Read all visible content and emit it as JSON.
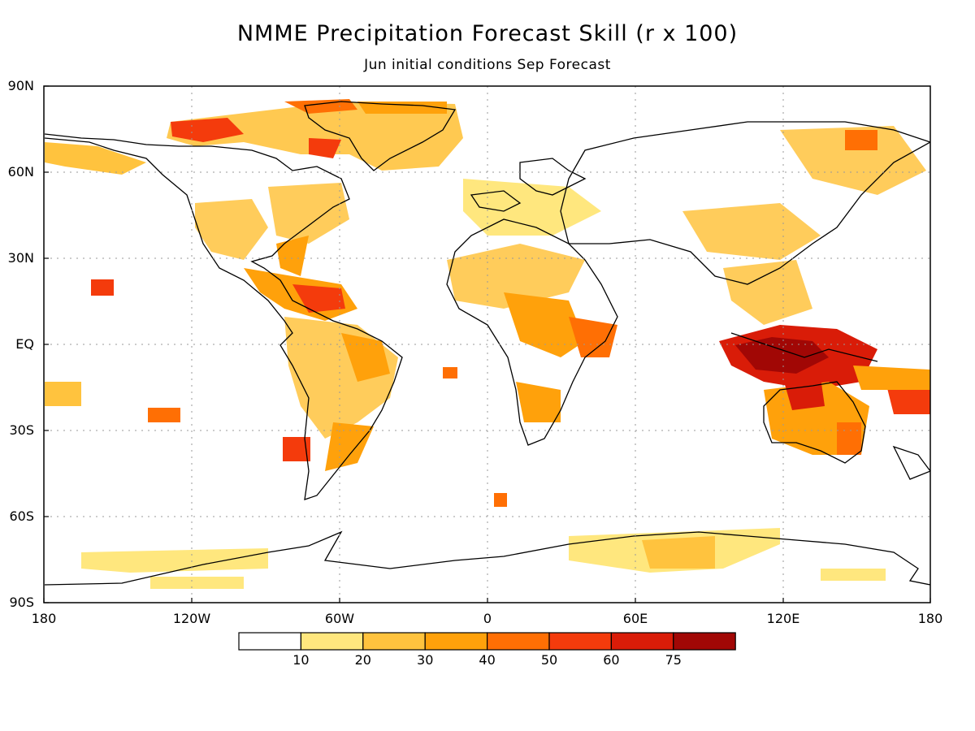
{
  "title": "NMME Precipitation Forecast Skill (r x 100)",
  "subtitle": "Jun initial conditions  Sep Forecast",
  "lat_labels": [
    "90N",
    "60N",
    "30N",
    "EQ",
    "30S",
    "60S",
    "90S"
  ],
  "lon_labels": [
    "180",
    "120W",
    "60W",
    "0",
    "60E",
    "120E",
    "180"
  ],
  "colorbar": {
    "colors": [
      "#ffffff",
      "#ffe77e",
      "#ffc33e",
      "#ffa10b",
      "#ff6f04",
      "#f43b0c",
      "#d91c08",
      "#a10705"
    ],
    "tick_labels": [
      "10",
      "20",
      "30",
      "40",
      "50",
      "60",
      "75"
    ]
  }
}
